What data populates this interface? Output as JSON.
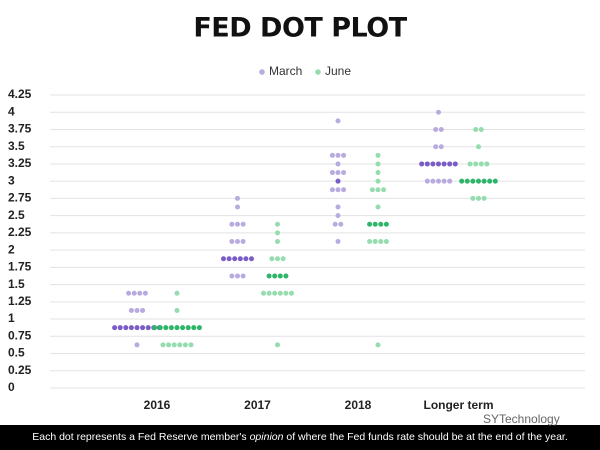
{
  "chart_data": {
    "type": "dotplot",
    "title": "FED DOT PLOT",
    "categories": [
      "2016",
      "2017",
      "2018",
      "Longer term"
    ],
    "series": [
      {
        "name": "March",
        "color": "#b9abe0",
        "median_color": "#7a5cc6",
        "values": [
          [
            1.375,
            1.375,
            1.375,
            1.375,
            1.125,
            1.125,
            1.125,
            0.875,
            0.875,
            0.875,
            0.875,
            0.875,
            0.875,
            0.875,
            0.875,
            0.875,
            0.625
          ],
          [
            2.75,
            2.625,
            2.375,
            2.375,
            2.375,
            2.125,
            2.125,
            2.125,
            1.875,
            1.875,
            1.875,
            1.875,
            1.875,
            1.875,
            1.625,
            1.625,
            1.625
          ],
          [
            3.875,
            3.375,
            3.375,
            3.375,
            3.25,
            3.125,
            3.125,
            3.125,
            3.0,
            2.875,
            2.875,
            2.875,
            2.625,
            2.5,
            2.375,
            2.375,
            2.125
          ],
          [
            4.0,
            3.75,
            3.75,
            3.5,
            3.5,
            3.25,
            3.25,
            3.25,
            3.25,
            3.25,
            3.25,
            3.25,
            3.0,
            3.0,
            3.0,
            3.0,
            3.0
          ]
        ]
      },
      {
        "name": "June",
        "color": "#95dcae",
        "median_color": "#2db56a",
        "values": [
          [
            1.375,
            1.125,
            0.875,
            0.875,
            0.875,
            0.875,
            0.875,
            0.875,
            0.875,
            0.875,
            0.875,
            0.625,
            0.625,
            0.625,
            0.625,
            0.625,
            0.625
          ],
          [
            2.375,
            2.25,
            2.125,
            1.875,
            1.875,
            1.875,
            1.625,
            1.625,
            1.625,
            1.625,
            1.375,
            1.375,
            1.375,
            1.375,
            1.375,
            1.375,
            0.625
          ],
          [
            3.375,
            3.25,
            3.125,
            3.0,
            2.875,
            2.875,
            2.875,
            2.625,
            2.375,
            2.375,
            2.375,
            2.375,
            2.125,
            2.125,
            2.125,
            2.125,
            0.625
          ],
          [
            3.75,
            3.75,
            3.5,
            3.25,
            3.25,
            3.25,
            3.25,
            3.0,
            3.0,
            3.0,
            3.0,
            3.0,
            3.0,
            3.0,
            2.75,
            2.75,
            2.75
          ]
        ]
      }
    ],
    "ylim": [
      0,
      4.25
    ],
    "yticks": [
      0,
      0.25,
      0.5,
      0.75,
      1,
      1.25,
      1.5,
      1.75,
      2,
      2.25,
      2.5,
      2.75,
      3,
      3.25,
      3.5,
      3.75,
      4,
      4.25
    ],
    "grid": true,
    "footnote": [
      "Each dot represents a Fed Reserve member's ",
      "opinion",
      " of where the Fed funds rate should be at the end of the year."
    ],
    "watermark": "SYTechnology"
  }
}
